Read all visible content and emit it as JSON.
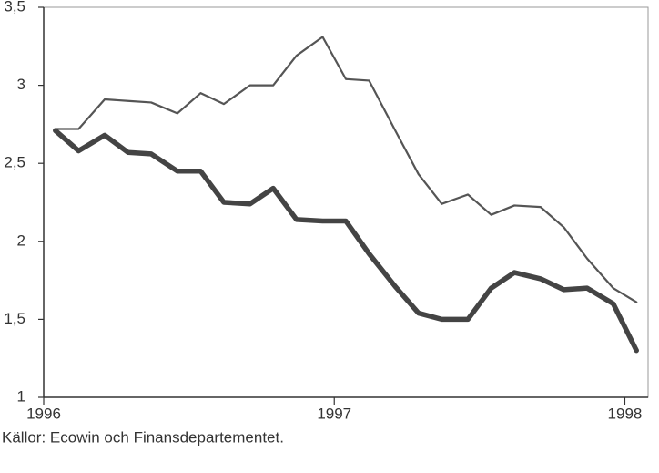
{
  "chart_data": {
    "type": "line",
    "x": [
      1996.04,
      1996.12,
      1996.21,
      1996.29,
      1996.37,
      1996.46,
      1996.54,
      1996.62,
      1996.71,
      1996.79,
      1996.87,
      1996.96,
      1997.04,
      1997.12,
      1997.21,
      1997.29,
      1997.37,
      1997.46,
      1997.54,
      1997.62,
      1997.71,
      1997.79,
      1997.87,
      1997.96,
      1998.04
    ],
    "series": [
      {
        "color": "#555555",
        "width": 2.2,
        "values": [
          2.72,
          2.72,
          2.91,
          2.9,
          2.89,
          2.82,
          2.95,
          2.88,
          3.0,
          3.0,
          3.19,
          3.31,
          3.04,
          3.03,
          2.71,
          2.43,
          2.24,
          2.3,
          2.17,
          2.23,
          2.22,
          2.09,
          1.89,
          1.7,
          1.61
        ]
      },
      {
        "color": "#444444",
        "width": 5.5,
        "values": [
          2.71,
          2.58,
          2.68,
          2.57,
          2.56,
          2.45,
          2.45,
          2.25,
          2.24,
          2.34,
          2.14,
          2.13,
          2.13,
          1.92,
          1.71,
          1.54,
          1.5,
          1.5,
          1.7,
          1.8,
          1.76,
          1.69,
          1.7,
          1.6,
          1.3
        ]
      }
    ],
    "xlim": [
      1996,
      1998.08
    ],
    "xticks": [
      1996,
      1997,
      1998
    ],
    "ylim": [
      1,
      3.5
    ],
    "yticks": [
      1,
      {
        "value": 1.5,
        "label": "1,5"
      },
      2,
      {
        "value": 2.5,
        "label": "2,5"
      },
      3,
      {
        "value": 3.5,
        "label": "3,5"
      }
    ],
    "source": "Källor: Ecowin och Finansdepartementet."
  }
}
